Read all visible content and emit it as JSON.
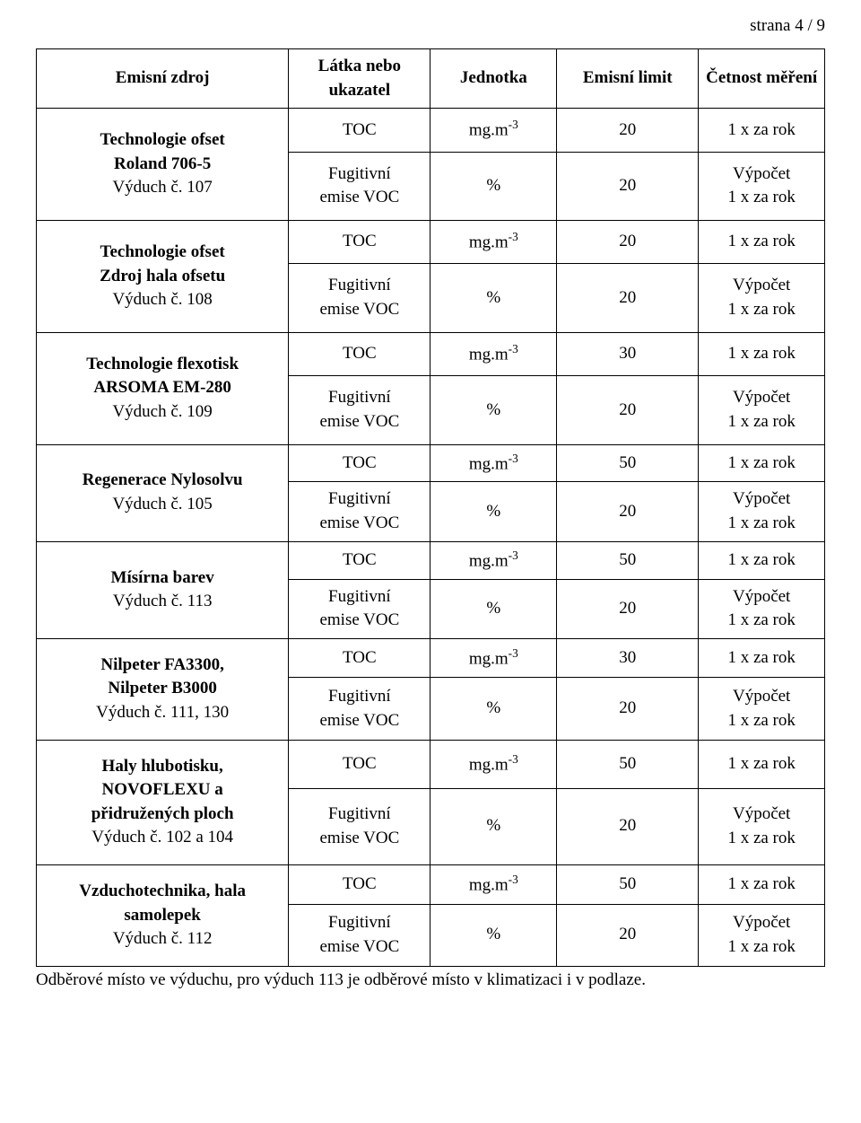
{
  "page_label": "strana 4 / 9",
  "header": {
    "col1": "Emisní zdroj",
    "col2_l1": "Látka nebo",
    "col2_l2": "ukazatel",
    "col3": "Jednotka",
    "col4": "Emisní limit",
    "col5": "Četnost měření"
  },
  "labels": {
    "toc": "TOC",
    "fug1": "Fugitivní",
    "fug2": "emise VOC",
    "unit_mgm3_prefix": "mg.m",
    "unit_mgm3_sup": "-3",
    "unit_pct": "%",
    "freq_1x": "1 x za rok",
    "vypocet": "Výpočet"
  },
  "sources": [
    {
      "l1": "Technologie ofset",
      "l2": "Roland 706-5",
      "l3": "Výduch č. 107",
      "toc_limit": "20"
    },
    {
      "l1": "Technologie ofset",
      "l2": "Zdroj hala ofsetu",
      "l3": "Výduch č. 108",
      "toc_limit": "20"
    },
    {
      "l1": "Technologie flexotisk",
      "l2": "ARSOMA EM-280",
      "l3": "Výduch č. 109",
      "toc_limit": "30"
    },
    {
      "l1": "Regenerace Nylosolvu",
      "l2": "Výduch č. 105",
      "l3": "",
      "toc_limit": "50"
    },
    {
      "l1": "Mísírna barev",
      "l2": "Výduch č. 113",
      "l3": "",
      "toc_limit": "50"
    },
    {
      "l1": "Nilpeter FA3300,",
      "l2": "Nilpeter B3000",
      "l3": "Výduch č. 111, 130",
      "toc_limit": "30"
    },
    {
      "l1": "Haly hlubotisku,",
      "l2": "NOVOFLEXU a",
      "l3": "přidružených ploch",
      "l4": "Výduch č. 102 a 104",
      "toc_limit": "50"
    },
    {
      "l1": "Vzduchotechnika, hala",
      "l2": "samolepek",
      "l3": "Výduch č. 112",
      "toc_limit": "50"
    }
  ],
  "fug_pct": "20",
  "footer": "Odběrové místo ve výduchu, pro výduch 113 je odběrové místo v klimatizaci i v podlaze."
}
